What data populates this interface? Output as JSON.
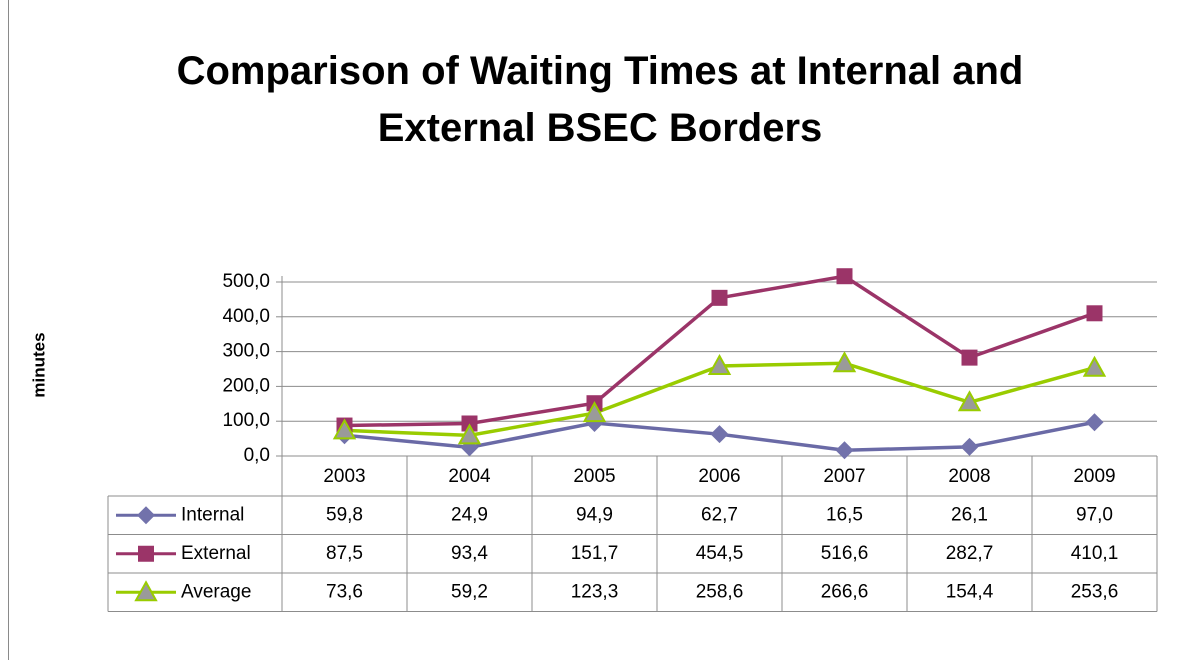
{
  "chart_data": {
    "type": "line",
    "title": "Comparison of Waiting Times at Internal and External BSEC Borders",
    "y_label": "minutes",
    "categories": [
      "2003",
      "2004",
      "2005",
      "2006",
      "2007",
      "2008",
      "2009"
    ],
    "series": [
      {
        "name": "Internal",
        "color": "#6a6aa6",
        "marker": "diamond",
        "marker_color": "#7272ab",
        "values": [
          59.8,
          24.9,
          94.9,
          62.7,
          16.5,
          26.1,
          97.0
        ],
        "value_labels": [
          "59,8",
          "24,9",
          "94,9",
          "62,7",
          "16,5",
          "26,1",
          "97,0"
        ]
      },
      {
        "name": "External",
        "color": "#9b3468",
        "marker": "square",
        "marker_color": "#9b3468",
        "values": [
          87.5,
          93.4,
          151.7,
          454.5,
          516.6,
          282.7,
          410.1
        ],
        "value_labels": [
          "87,5",
          "93,4",
          "151,7",
          "454,5",
          "516,6",
          "282,7",
          "410,1"
        ]
      },
      {
        "name": "Average",
        "color": "#99cc00",
        "marker": "triangle",
        "marker_color": "#9a9a9a",
        "values": [
          73.6,
          59.2,
          123.3,
          258.6,
          266.6,
          154.4,
          253.6
        ],
        "value_labels": [
          "73,6",
          "59,2",
          "123,3",
          "258,6",
          "266,6",
          "154,4",
          "253,6"
        ]
      }
    ],
    "ylim": [
      0,
      500
    ],
    "yticks": [
      {
        "value": 0,
        "label": "0,0"
      },
      {
        "value": 100,
        "label": "100,0"
      },
      {
        "value": 200,
        "label": "200,0"
      },
      {
        "value": 300,
        "label": "300,0"
      },
      {
        "value": 400,
        "label": "400,0"
      },
      {
        "value": 500,
        "label": "500,0"
      }
    ],
    "grid": true,
    "data_table": true
  }
}
